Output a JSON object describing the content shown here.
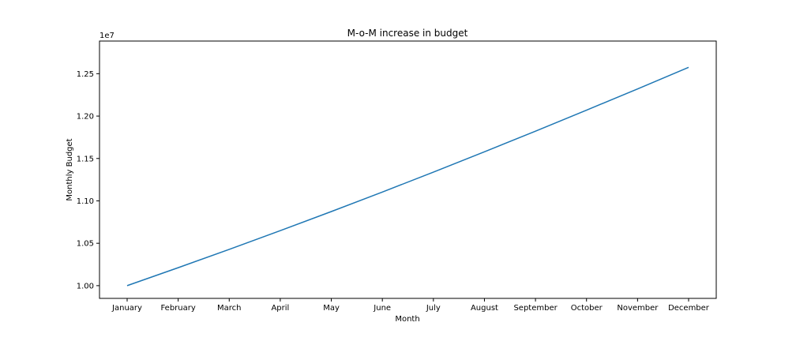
{
  "chart_data": {
    "type": "line",
    "title": "M-o-M increase in budget",
    "xlabel": "Month",
    "ylabel": "Monthly Budget",
    "y_offset_label": "1e7",
    "categories": [
      "January",
      "February",
      "March",
      "April",
      "May",
      "June",
      "July",
      "August",
      "September",
      "October",
      "November",
      "December"
    ],
    "series": [
      {
        "values": [
          1.0,
          1.0212,
          1.0428,
          1.0649,
          1.0874,
          1.1104,
          1.1339,
          1.1579,
          1.1822,
          1.207,
          1.232,
          1.2575
        ]
      }
    ],
    "ylim": [
      0.985,
      1.2885
    ],
    "yticks": [
      1.0,
      1.05,
      1.1,
      1.15,
      1.2,
      1.25
    ],
    "ytick_labels": [
      "1.00",
      "1.05",
      "1.10",
      "1.15",
      "1.20",
      "1.25"
    ],
    "grid": false,
    "line_color": "#1f77b4"
  }
}
